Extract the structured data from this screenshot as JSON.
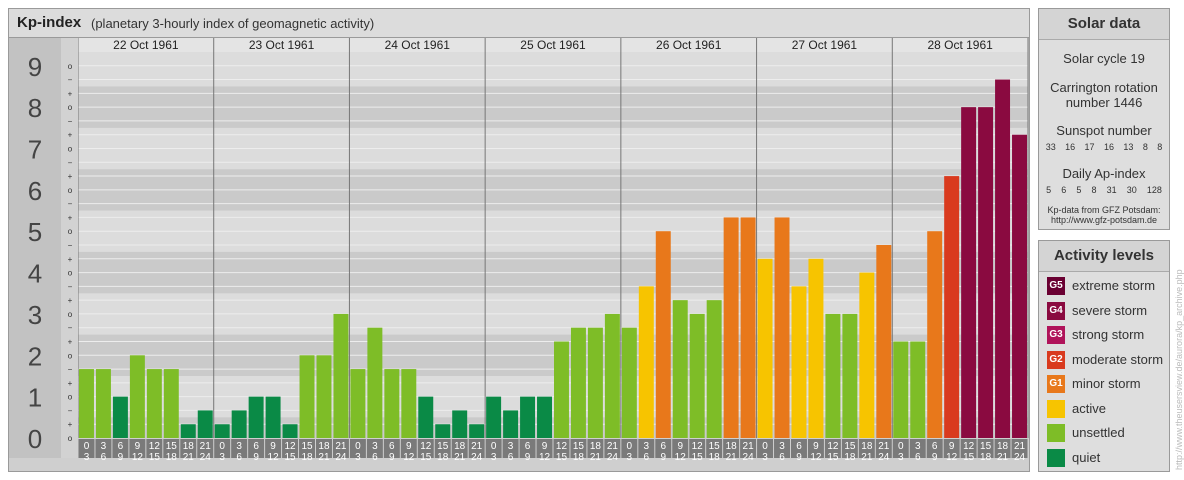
{
  "title": "Kp-index",
  "subtitle": "(planetary 3-hourly index of geomagnetic activity)",
  "chart_data": {
    "type": "bar",
    "ylim": [
      0,
      9
    ],
    "y_ticks": [
      "0",
      "1",
      "2",
      "3",
      "4",
      "5",
      "6",
      "7",
      "8",
      "9"
    ],
    "minor_tick_labels": [
      "o",
      "+",
      "−"
    ],
    "days": [
      "22 Oct 1961",
      "23 Oct 1961",
      "24 Oct 1961",
      "25 Oct 1961",
      "26 Oct 1961",
      "27 Oct 1961",
      "28 Oct 1961"
    ],
    "interval_labels_top": [
      "0",
      "3",
      "6",
      "9",
      "12",
      "15",
      "18",
      "21"
    ],
    "interval_labels_bottom": [
      "3",
      "6",
      "9",
      "12",
      "15",
      "18",
      "21",
      "24"
    ],
    "values": [
      [
        1.667,
        1.667,
        1.0,
        2.0,
        1.667,
        1.667,
        0.333,
        0.667
      ],
      [
        0.333,
        0.667,
        1.0,
        1.0,
        0.333,
        2.0,
        2.0,
        3.0
      ],
      [
        1.667,
        2.667,
        1.667,
        1.667,
        1.0,
        0.333,
        0.667,
        0.333
      ],
      [
        1.0,
        0.667,
        1.0,
        1.0,
        2.333,
        2.667,
        2.667,
        3.0
      ],
      [
        2.667,
        3.667,
        5.0,
        3.333,
        3.0,
        3.333,
        5.333,
        5.333
      ],
      [
        4.333,
        5.333,
        3.667,
        4.333,
        3.0,
        3.0,
        4.0,
        4.667
      ],
      [
        2.333,
        2.333,
        5.0,
        6.333,
        8.0,
        8.0,
        8.667,
        7.333
      ]
    ],
    "colors": {
      "quiet": "#0a8a46",
      "unsettled": "#7ebd27",
      "active": "#f7c400",
      "minor_storm": "#e8781b",
      "moderate_storm": "#d93a1e",
      "severe_storm": "#8a0a40",
      "extreme_storm": "#6a0032"
    }
  },
  "solar": {
    "header": "Solar data",
    "cycle": "Solar cycle 19",
    "carrington_line1": "Carrington rotation",
    "carrington_line2": "number 1446",
    "sunspot_label": "Sunspot number",
    "sunspot_values": [
      "33",
      "16",
      "17",
      "16",
      "13",
      "8",
      "8"
    ],
    "ap_label": "Daily Ap-index",
    "ap_values": [
      "5",
      "6",
      "5",
      "8",
      "31",
      "30",
      "128"
    ],
    "credit_line1": "Kp-data from GFZ Potsdam:",
    "credit_line2": "http://www.gfz-potsdam.de"
  },
  "activity": {
    "header": "Activity levels",
    "levels": [
      {
        "code": "G5",
        "label": "extreme storm",
        "color": "#6a0032"
      },
      {
        "code": "G4",
        "label": "severe storm",
        "color": "#8a0a40"
      },
      {
        "code": "G3",
        "label": "strong storm",
        "color": "#b0135a"
      },
      {
        "code": "G2",
        "label": "moderate storm",
        "color": "#d93a1e"
      },
      {
        "code": "G1",
        "label": "minor storm",
        "color": "#e8781b"
      },
      {
        "code": "",
        "label": "active",
        "color": "#f7c400"
      },
      {
        "code": "",
        "label": "unsettled",
        "color": "#7ebd27"
      },
      {
        "code": "",
        "label": "quiet",
        "color": "#0a8a46"
      }
    ]
  },
  "watermark": "http://www.theusersview.de/aurora/kp_archive.php"
}
